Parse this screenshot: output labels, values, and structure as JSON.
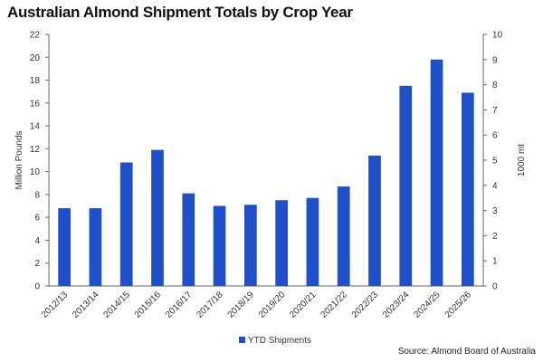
{
  "title": "Australian Almond Shipment Totals by Crop Year",
  "source": "Source: Almond Board of Australia",
  "colors": {
    "bar": "#1f4fc9",
    "axis": "#666666"
  },
  "chart_data": {
    "type": "bar",
    "title": "Australian Almond Shipment Totals by Crop Year",
    "categories": [
      "2012/13",
      "2013/14",
      "2014/15",
      "2015/16",
      "2016/17",
      "2017/18",
      "2018/19",
      "2019/20",
      "2020/21",
      "2021/22",
      "2022/23",
      "2023/24",
      "2024/25",
      "2025/26"
    ],
    "series": [
      {
        "name": "YTD Shipments",
        "values": [
          6.8,
          6.8,
          10.8,
          11.9,
          8.1,
          7.0,
          7.1,
          7.5,
          7.7,
          8.7,
          11.4,
          17.5,
          19.8,
          16.9
        ]
      }
    ],
    "ylabel": "Million Pounds",
    "ylim": [
      0,
      22
    ],
    "yticks": [
      "0",
      "2",
      "4",
      "6",
      "8",
      "10",
      "12",
      "14",
      "16",
      "18",
      "20",
      "22"
    ],
    "y2label": "1000 mt",
    "y2lim": [
      0,
      10
    ],
    "y2ticks": [
      "0",
      "1",
      "2",
      "3",
      "4",
      "5",
      "6",
      "7",
      "8",
      "9",
      "10"
    ],
    "grid": false,
    "legend": "bottom-center"
  }
}
